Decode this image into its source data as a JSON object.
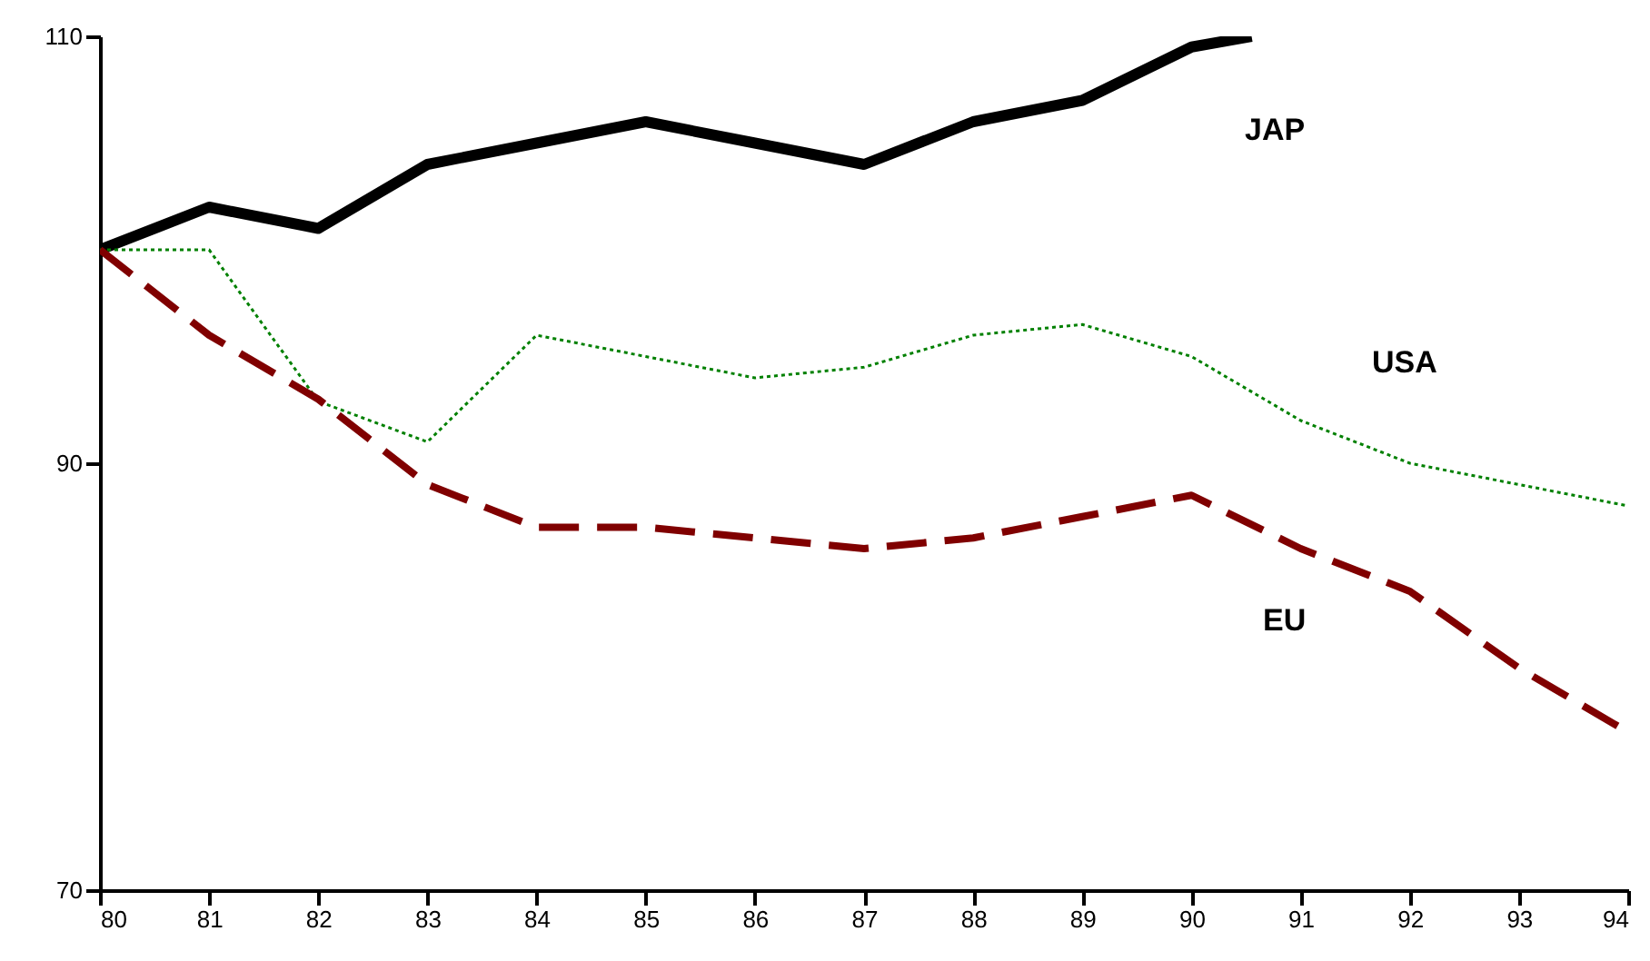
{
  "chart_data": {
    "type": "line",
    "x": [
      80,
      81,
      82,
      83,
      84,
      85,
      86,
      87,
      88,
      89,
      90,
      91,
      92,
      93,
      94
    ],
    "xlim": [
      80,
      94
    ],
    "xticks": [
      80,
      81,
      82,
      83,
      84,
      85,
      86,
      87,
      88,
      89,
      90,
      91,
      92,
      93,
      94
    ],
    "ylim": [
      70,
      110
    ],
    "yticks": [
      70,
      90,
      110
    ],
    "grid": false,
    "legend": false,
    "marker": "none",
    "series": [
      {
        "name": "JAP",
        "color": "#000000",
        "line_style": "solid",
        "x": [
          80,
          81,
          82,
          83,
          84,
          85,
          86,
          87,
          88,
          89,
          90,
          90.55
        ],
        "values": [
          100,
          102,
          101,
          104,
          105,
          106,
          105,
          104,
          106,
          107,
          109.5,
          110
        ]
      },
      {
        "name": "USA",
        "color": "#008000",
        "line_style": "dotted",
        "values": [
          100,
          100,
          92.9,
          91,
          96,
          95,
          94,
          94.5,
          96,
          96.5,
          95,
          92,
          90,
          89,
          88
        ]
      },
      {
        "name": "EU",
        "color": "#800000",
        "line_style": "dashed",
        "values": [
          100,
          96,
          93,
          89,
          87,
          87,
          86.5,
          86,
          86.5,
          87.5,
          88.5,
          86,
          84,
          80.4,
          77.4
        ]
      }
    ]
  }
}
